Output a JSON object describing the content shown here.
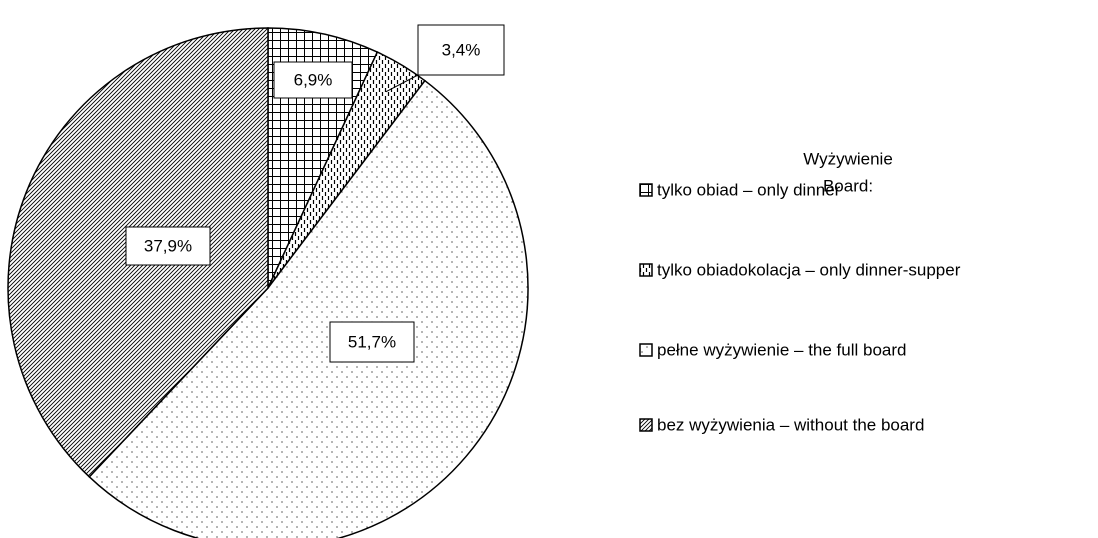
{
  "chart_data": {
    "type": "pie",
    "legend_title": [
      "Wyżywienie",
      "Board:"
    ],
    "categories": [
      "tylko obiad – only dinner",
      "tylko obiadokolacja – only dinner-supper",
      "pełne wyżywienie – the full board",
      "bez wyżywienia – without the board"
    ],
    "values": [
      6.9,
      3.4,
      51.7,
      37.9
    ],
    "value_labels": [
      "6,9%",
      "3,4%",
      "51,7%",
      "37,9%"
    ],
    "legend": "right"
  }
}
